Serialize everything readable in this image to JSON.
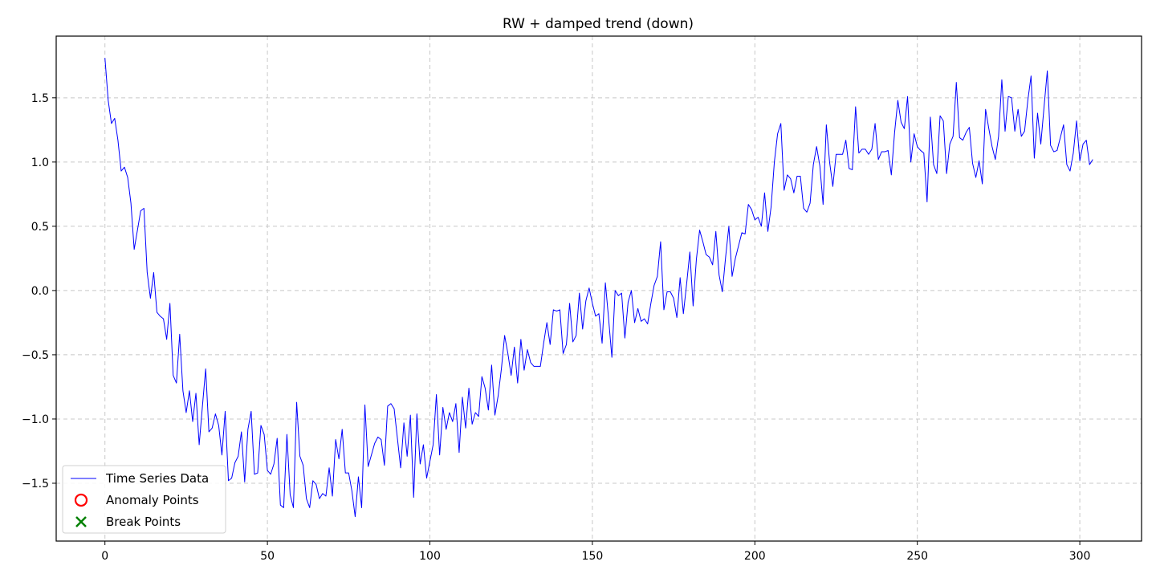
{
  "chart_data": {
    "type": "line",
    "title": "RW + damped trend (down)",
    "xlabel": "",
    "ylabel": "",
    "xlim": [
      -15,
      319
    ],
    "ylim": [
      -1.95,
      1.98
    ],
    "xticks": [
      0,
      50,
      100,
      150,
      200,
      250,
      300
    ],
    "xtick_labels": [
      "0",
      "50",
      "100",
      "150",
      "200",
      "250",
      "300"
    ],
    "yticks": [
      -1.5,
      -1.0,
      -0.5,
      0.0,
      0.5,
      1.0,
      1.5
    ],
    "ytick_labels": [
      "−1.5",
      "−1.0",
      "−0.5",
      "0.0",
      "0.5",
      "1.0",
      "1.5"
    ],
    "grid": true,
    "legend_position": "lower-left",
    "series": [
      {
        "name": "Time Series Data",
        "color": "#0000ff",
        "x_start": 0,
        "x_step": 1,
        "values": [
          1.81,
          1.48,
          1.3,
          1.34,
          1.17,
          0.93,
          0.96,
          0.88,
          0.68,
          0.32,
          0.47,
          0.62,
          0.64,
          0.14,
          -0.06,
          0.14,
          -0.17,
          -0.2,
          -0.22,
          -0.38,
          -0.1,
          -0.66,
          -0.72,
          -0.34,
          -0.78,
          -0.95,
          -0.78,
          -1.02,
          -0.8,
          -1.2,
          -0.9,
          -0.61,
          -1.1,
          -1.07,
          -0.96,
          -1.05,
          -1.28,
          -0.94,
          -1.48,
          -1.46,
          -1.34,
          -1.29,
          -1.1,
          -1.49,
          -1.08,
          -0.94,
          -1.43,
          -1.42,
          -1.05,
          -1.12,
          -1.4,
          -1.43,
          -1.35,
          -1.15,
          -1.67,
          -1.69,
          -1.12,
          -1.59,
          -1.69,
          -0.87,
          -1.29,
          -1.36,
          -1.62,
          -1.69,
          -1.48,
          -1.51,
          -1.62,
          -1.58,
          -1.6,
          -1.38,
          -1.6,
          -1.16,
          -1.31,
          -1.08,
          -1.42,
          -1.42,
          -1.56,
          -1.76,
          -1.45,
          -1.69,
          -0.89,
          -1.37,
          -1.28,
          -1.19,
          -1.14,
          -1.16,
          -1.36,
          -0.9,
          -0.88,
          -0.92,
          -1.15,
          -1.38,
          -1.03,
          -1.29,
          -0.97,
          -1.61,
          -0.96,
          -1.35,
          -1.2,
          -1.46,
          -1.33,
          -1.2,
          -0.81,
          -1.28,
          -0.91,
          -1.08,
          -0.95,
          -1.02,
          -0.88,
          -1.26,
          -0.83,
          -1.07,
          -0.76,
          -1.04,
          -0.95,
          -0.98,
          -0.67,
          -0.76,
          -0.93,
          -0.58,
          -0.97,
          -0.82,
          -0.61,
          -0.35,
          -0.49,
          -0.66,
          -0.44,
          -0.72,
          -0.38,
          -0.62,
          -0.46,
          -0.56,
          -0.59,
          -0.59,
          -0.59,
          -0.41,
          -0.25,
          -0.42,
          -0.15,
          -0.16,
          -0.15,
          -0.49,
          -0.42,
          -0.1,
          -0.4,
          -0.35,
          -0.02,
          -0.3,
          -0.08,
          0.02,
          -0.1,
          -0.2,
          -0.18,
          -0.41,
          0.06,
          -0.22,
          -0.52,
          0.0,
          -0.04,
          -0.02,
          -0.37,
          -0.09,
          0.0,
          -0.25,
          -0.14,
          -0.24,
          -0.22,
          -0.26,
          -0.1,
          0.04,
          0.11,
          0.38,
          -0.15,
          -0.01,
          -0.01,
          -0.06,
          -0.21,
          0.1,
          -0.18,
          0.05,
          0.3,
          -0.12,
          0.24,
          0.47,
          0.38,
          0.28,
          0.26,
          0.2,
          0.46,
          0.12,
          -0.01,
          0.26,
          0.5,
          0.11,
          0.25,
          0.35,
          0.45,
          0.44,
          0.67,
          0.63,
          0.55,
          0.57,
          0.5,
          0.76,
          0.46,
          0.65,
          1.0,
          1.22,
          1.3,
          0.78,
          0.9,
          0.87,
          0.76,
          0.89,
          0.89,
          0.64,
          0.61,
          0.68,
          0.98,
          1.12,
          0.97,
          0.67,
          1.29,
          1.0,
          0.81,
          1.06,
          1.06,
          1.06,
          1.17,
          0.95,
          0.94,
          1.43,
          1.07,
          1.1,
          1.1,
          1.06,
          1.1,
          1.3,
          1.02,
          1.08,
          1.08,
          1.09,
          0.9,
          1.23,
          1.48,
          1.31,
          1.26,
          1.51,
          1.0,
          1.22,
          1.12,
          1.09,
          1.07,
          0.69,
          1.35,
          0.98,
          0.91,
          1.36,
          1.32,
          0.91,
          1.14,
          1.2,
          1.62,
          1.19,
          1.17,
          1.23,
          1.27,
          0.99,
          0.88,
          1.01,
          0.83,
          1.41,
          1.26,
          1.12,
          1.02,
          1.2,
          1.64,
          1.24,
          1.51,
          1.5,
          1.24,
          1.41,
          1.2,
          1.24,
          1.48,
          1.67,
          1.03,
          1.38,
          1.14,
          1.43,
          1.71,
          1.13,
          1.08,
          1.09,
          1.19,
          1.29,
          0.98,
          0.93,
          1.07,
          1.32,
          1.01,
          1.14,
          1.17,
          0.98,
          1.02
        ]
      },
      {
        "name": "Anomaly Points",
        "color": "#ff0000",
        "marker": "circle-open",
        "points": []
      },
      {
        "name": "Break Points",
        "color": "#008000",
        "marker": "x",
        "points": []
      }
    ]
  }
}
